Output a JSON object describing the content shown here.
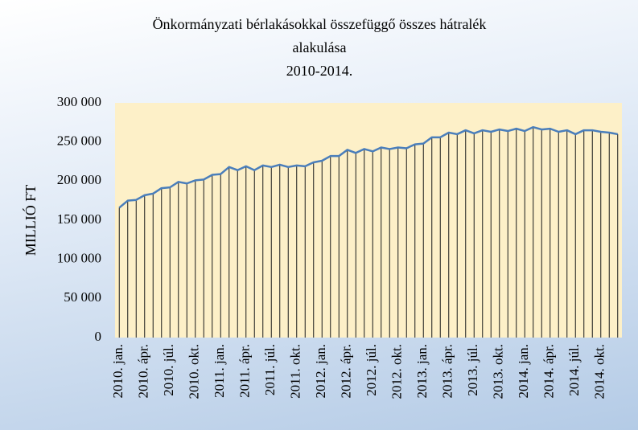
{
  "chart_data": {
    "type": "line",
    "title": [
      "Önkormányzati  bérlakásokkal  összefüggő  összes  hátralék",
      "alakulása",
      "2010-2014."
    ],
    "y_label": "MILLIÓ  FT",
    "categories": [
      "2010. jan.",
      null,
      null,
      "2010. ápr.",
      null,
      null,
      "2010. júl.",
      null,
      null,
      "2010. okt.",
      null,
      null,
      "2011. jan.",
      null,
      null,
      "2011. ápr.",
      null,
      null,
      "2011. júl.",
      null,
      null,
      "2011. okt.",
      null,
      null,
      "2012. jan.",
      null,
      null,
      "2012. ápr.",
      null,
      null,
      "2012. júl.",
      null,
      null,
      "2012. okt.",
      null,
      null,
      "2013. jan.",
      null,
      null,
      "2013. ápr.",
      null,
      null,
      "2013. júl.",
      null,
      null,
      "2013. okt.",
      null,
      null,
      "2014. jan.",
      null,
      null,
      "2014. ápr.",
      null,
      null,
      "2014. júl.",
      null,
      null,
      "2014. okt.",
      null,
      null
    ],
    "values": [
      166000,
      175000,
      176000,
      182000,
      184000,
      191000,
      192000,
      199000,
      197000,
      201000,
      202000,
      208000,
      209000,
      218000,
      214000,
      219000,
      214000,
      220000,
      218000,
      221000,
      218000,
      220000,
      219000,
      224000,
      226000,
      232000,
      232000,
      240000,
      236000,
      241000,
      238000,
      243000,
      241000,
      243000,
      242000,
      247000,
      248000,
      256000,
      256000,
      262000,
      260000,
      265000,
      261000,
      265000,
      263000,
      266000,
      264000,
      267000,
      264000,
      269000,
      266000,
      267000,
      263000,
      265000,
      260000,
      265000,
      265000,
      263000,
      262000,
      260000
    ],
    "color": "#4a7ebb",
    "drop_line_color": "#1a1a1a",
    "plot_background": "#fdf0c8",
    "ylim": [
      0,
      300000
    ],
    "yticks": [
      0,
      {
        "value": 50000,
        "label": "50 000"
      },
      {
        "value": 100000,
        "label": "100 000"
      },
      {
        "value": 150000,
        "label": "150 000"
      },
      {
        "value": 200000,
        "label": "200 000"
      },
      {
        "value": 250000,
        "label": "250 000"
      },
      {
        "value": 300000,
        "label": "300 000"
      }
    ],
    "grid": false
  }
}
